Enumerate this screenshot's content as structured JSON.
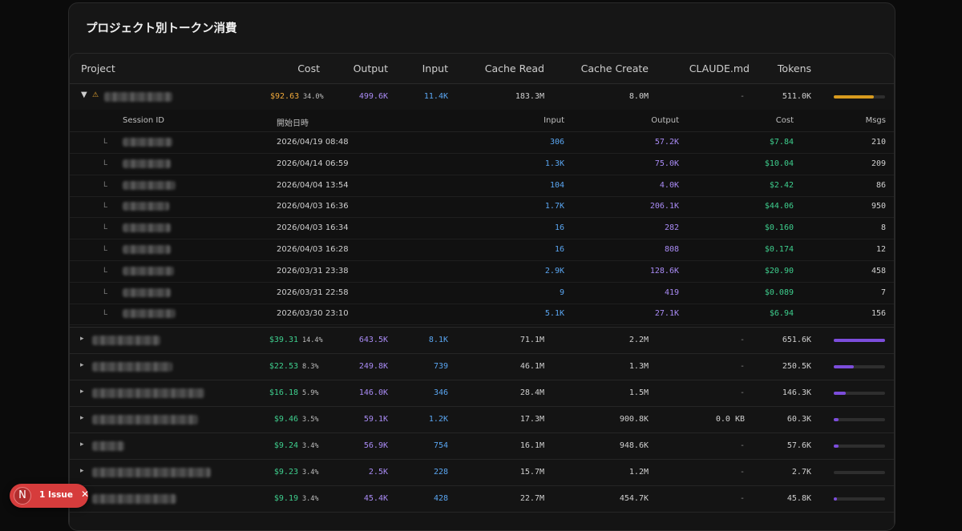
{
  "title": "プロジェクト別トークン消費",
  "headers": {
    "project": "Project",
    "cost": "Cost",
    "output": "Output",
    "input": "Input",
    "cache_read": "Cache Read",
    "cache_create": "Cache Create",
    "claude_md": "CLAUDE.md",
    "tokens": "Tokens"
  },
  "expanded_project": {
    "arrow": "▼",
    "warning_icon": "⚠",
    "cost": "$92.63",
    "pct": "34.0%",
    "output": "499.6K",
    "input": "11.4K",
    "cache_read": "183.3M",
    "cache_create": "8.0M",
    "claude_md": "-",
    "tokens": "511.0K",
    "bar_fraction": 0.78,
    "bar_color": "#d89b1e",
    "cost_color": "#f0a83a"
  },
  "session_headers": {
    "session_id": "Session ID",
    "start": "開始日時",
    "input": "Input",
    "output": "Output",
    "cost": "Cost",
    "msgs": "Msgs"
  },
  "sessions": [
    {
      "tree": "L",
      "start": "2026/04/19 08:48",
      "input": "306",
      "output": "57.2K",
      "cost": "$7.84",
      "msgs": "210"
    },
    {
      "tree": "L",
      "start": "2026/04/14 06:59",
      "input": "1.3K",
      "output": "75.0K",
      "cost": "$10.04",
      "msgs": "209"
    },
    {
      "tree": "L",
      "start": "2026/04/04 13:54",
      "input": "104",
      "output": "4.0K",
      "cost": "$2.42",
      "msgs": "86"
    },
    {
      "tree": "L",
      "start": "2026/04/03 16:36",
      "input": "1.7K",
      "output": "206.1K",
      "cost": "$44.06",
      "msgs": "950"
    },
    {
      "tree": "L",
      "start": "2026/04/03 16:34",
      "input": "16",
      "output": "282",
      "cost": "$0.160",
      "msgs": "8"
    },
    {
      "tree": "L",
      "start": "2026/04/03 16:28",
      "input": "16",
      "output": "808",
      "cost": "$0.174",
      "msgs": "12"
    },
    {
      "tree": "L",
      "start": "2026/03/31 23:38",
      "input": "2.9K",
      "output": "128.6K",
      "cost": "$20.90",
      "msgs": "458"
    },
    {
      "tree": "L",
      "start": "2026/03/31 22:58",
      "input": "9",
      "output": "419",
      "cost": "$0.089",
      "msgs": "7"
    },
    {
      "tree": "L",
      "start": "2026/03/30 23:10",
      "input": "5.1K",
      "output": "27.1K",
      "cost": "$6.94",
      "msgs": "156"
    }
  ],
  "projects": [
    {
      "arrow": "▸",
      "cost": "$39.31",
      "pct": "14.4%",
      "output": "643.5K",
      "input": "8.1K",
      "cache_read": "71.1M",
      "cache_create": "2.2M",
      "claude_md": "-",
      "tokens": "651.6K",
      "bar_fraction": 1.0
    },
    {
      "arrow": "▸",
      "cost": "$22.53",
      "pct": "8.3%",
      "output": "249.8K",
      "input": "739",
      "cache_read": "46.1M",
      "cache_create": "1.3M",
      "claude_md": "-",
      "tokens": "250.5K",
      "bar_fraction": 0.39
    },
    {
      "arrow": "▸",
      "cost": "$16.18",
      "pct": "5.9%",
      "output": "146.0K",
      "input": "346",
      "cache_read": "28.4M",
      "cache_create": "1.5M",
      "claude_md": "-",
      "tokens": "146.3K",
      "bar_fraction": 0.23
    },
    {
      "arrow": "▸",
      "cost": "$9.46",
      "pct": "3.5%",
      "output": "59.1K",
      "input": "1.2K",
      "cache_read": "17.3M",
      "cache_create": "900.8K",
      "claude_md": "0.0 KB",
      "tokens": "60.3K",
      "bar_fraction": 0.09
    },
    {
      "arrow": "▸",
      "cost": "$9.24",
      "pct": "3.4%",
      "output": "56.9K",
      "input": "754",
      "cache_read": "16.1M",
      "cache_create": "948.6K",
      "claude_md": "-",
      "tokens": "57.6K",
      "bar_fraction": 0.09
    },
    {
      "arrow": "▸",
      "cost": "$9.23",
      "pct": "3.4%",
      "output": "2.5K",
      "input": "228",
      "cache_read": "15.7M",
      "cache_create": "1.2M",
      "claude_md": "-",
      "tokens": "2.7K",
      "bar_fraction": 0.0
    },
    {
      "arrow": "▸",
      "cost": "$9.19",
      "pct": "3.4%",
      "output": "45.4K",
      "input": "428",
      "cache_read": "22.7M",
      "cache_create": "454.7K",
      "claude_md": "-",
      "tokens": "45.8K",
      "bar_fraction": 0.07
    }
  ],
  "colors": {
    "cost_green": "#3ecf8e",
    "output_purple": "#a98bf5",
    "input_blue": "#5aa6f2",
    "bar_purple": "#7c4ddb"
  },
  "issue_badge": {
    "logo": "N",
    "label": "1 Issue",
    "close": "✕"
  }
}
